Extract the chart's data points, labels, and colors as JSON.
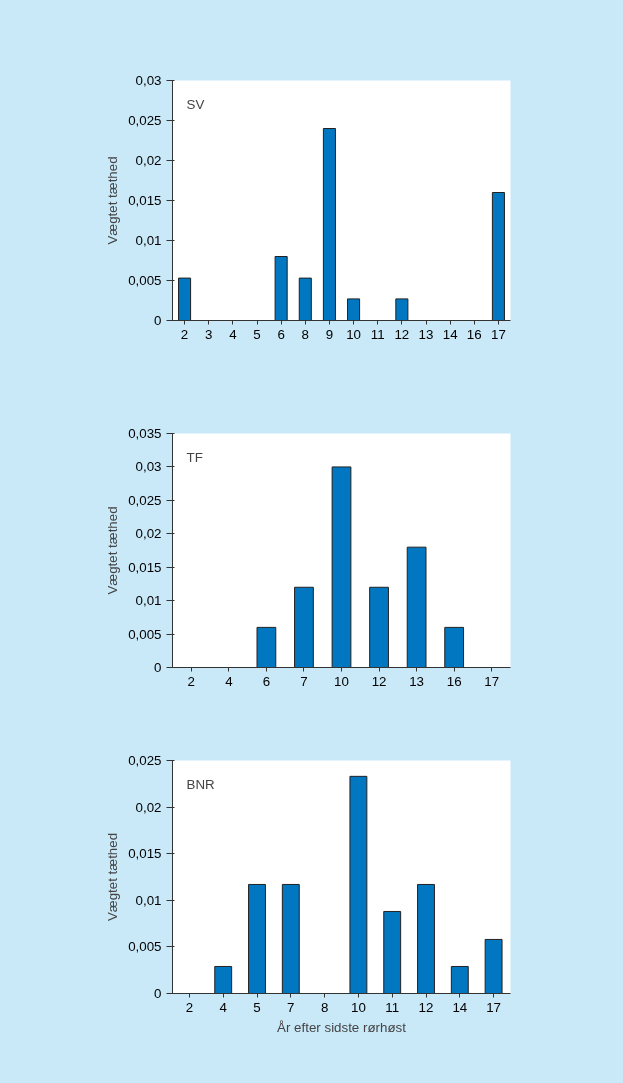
{
  "chart_data": [
    {
      "type": "bar",
      "annotations": [
        "SV"
      ],
      "ylabel": "Vægtet tæthed",
      "color": "#0077c0",
      "grid": false,
      "categories": [
        "2",
        "3",
        "4",
        "5",
        "6",
        "8",
        "9",
        "10",
        "11",
        "12",
        "13",
        "14",
        "16",
        "17"
      ],
      "values": [
        0.0053,
        0,
        0,
        0,
        0.008,
        0.0053,
        0.024,
        0.0027,
        0,
        0.0027,
        0,
        0,
        0,
        0.016
      ],
      "ylim": [
        0,
        0.03
      ],
      "yticks": [
        0,
        {
          "value": 0.005,
          "label": "0,005"
        },
        {
          "value": 0.01,
          "label": "0,01"
        },
        {
          "value": 0.015,
          "label": "0,015"
        },
        {
          "value": 0.02,
          "label": "0,02"
        },
        {
          "value": 0.025,
          "label": "0,025"
        },
        {
          "value": 0.03,
          "label": "0,03"
        }
      ]
    },
    {
      "type": "bar",
      "annotations": [
        "TF"
      ],
      "ylabel": "Vægtet tæthed",
      "color": "#0077c0",
      "grid": false,
      "categories": [
        "2",
        "4",
        "6",
        "7",
        "10",
        "12",
        "13",
        "16",
        "17"
      ],
      "values": [
        0,
        0,
        0.006,
        0.012,
        0.03,
        0.012,
        0.018,
        0.006,
        0
      ],
      "ylim": [
        0,
        0.035
      ],
      "yticks": [
        0,
        {
          "value": 0.005,
          "label": "0,005"
        },
        {
          "value": 0.01,
          "label": "0,01"
        },
        {
          "value": 0.015,
          "label": "0,015"
        },
        {
          "value": 0.02,
          "label": "0,02"
        },
        {
          "value": 0.025,
          "label": "0,025"
        },
        {
          "value": 0.03,
          "label": "0,03"
        },
        {
          "value": 0.035,
          "label": "0,035"
        }
      ]
    },
    {
      "type": "bar",
      "annotations": [
        "BNR"
      ],
      "ylabel": "Vægtet tæthed",
      "xlabel": "År efter sidste rørhøst",
      "color": "#0077c0",
      "grid": false,
      "categories": [
        "2",
        "4",
        "5",
        "7",
        "8",
        "10",
        "11",
        "12",
        "14",
        "17"
      ],
      "values": [
        0,
        0.0029,
        0.0117,
        0.0117,
        0,
        0.0233,
        0.0088,
        0.0117,
        0.0029,
        0.0058
      ],
      "ylim": [
        0,
        0.025
      ],
      "yticks": [
        0,
        {
          "value": 0.005,
          "label": "0,005"
        },
        {
          "value": 0.01,
          "label": "0,01"
        },
        {
          "value": 0.015,
          "label": "0,015"
        },
        {
          "value": 0.02,
          "label": "0,02"
        },
        {
          "value": 0.025,
          "label": "0,025"
        }
      ]
    }
  ]
}
